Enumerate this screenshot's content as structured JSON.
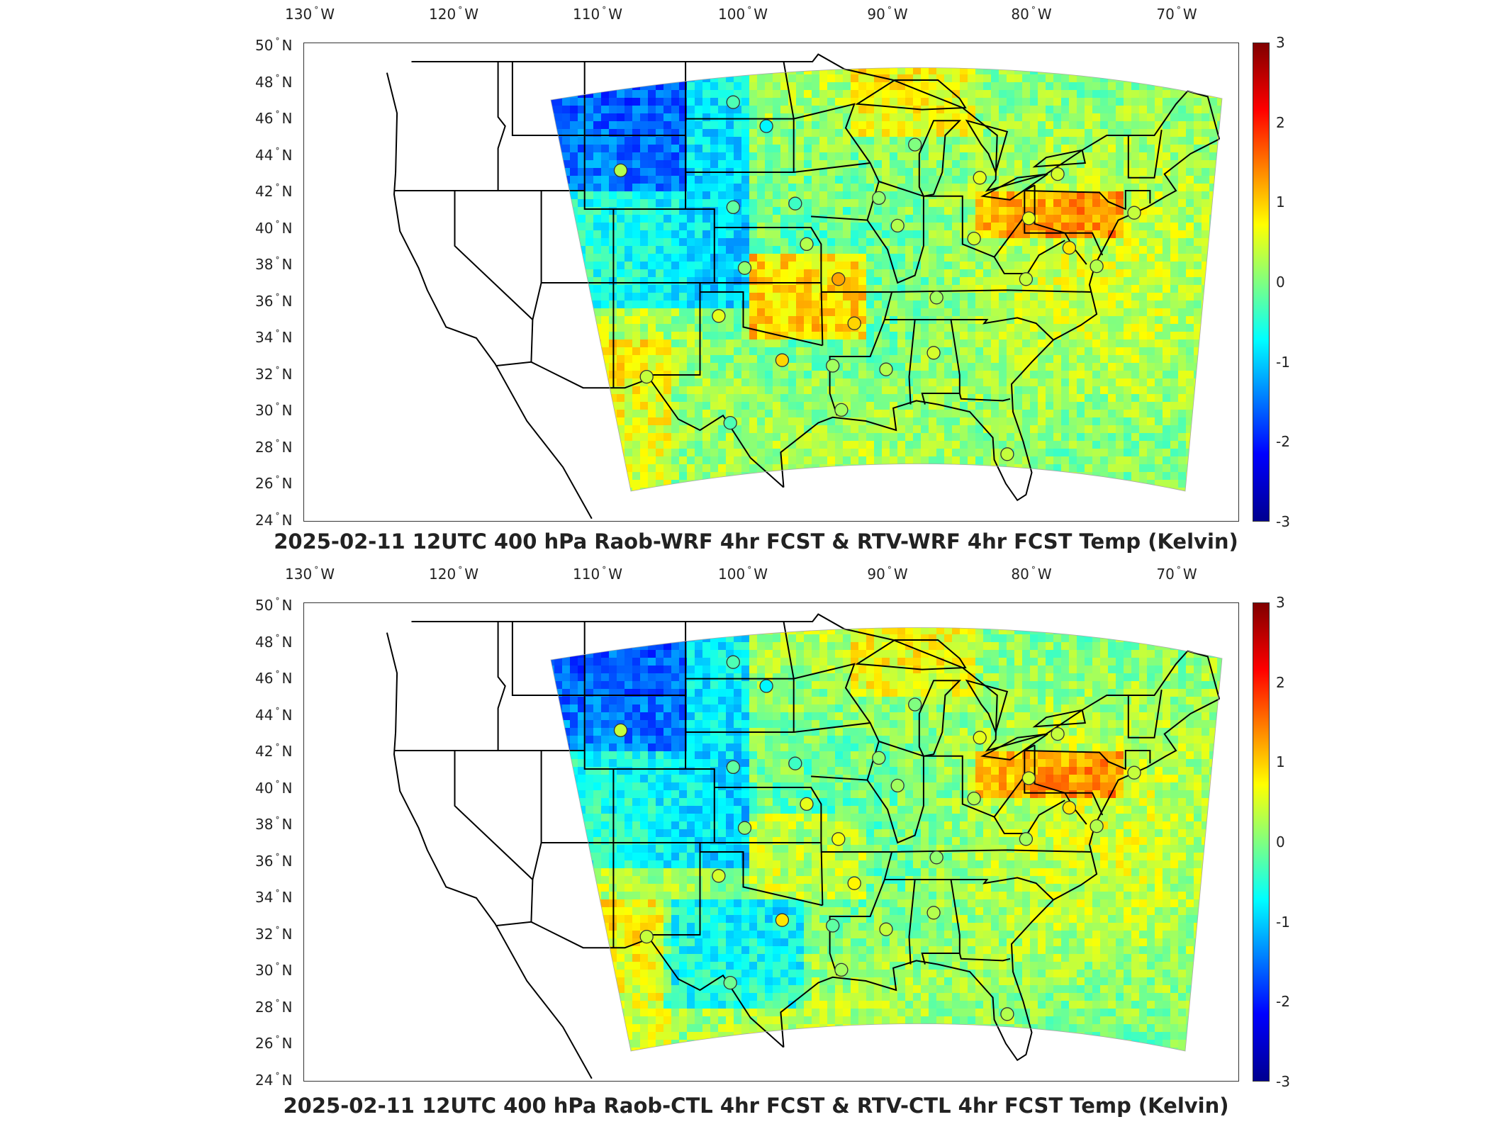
{
  "lon_labels": [
    "130",
    "120",
    "110",
    "100",
    "90",
    "80",
    "70"
  ],
  "lon_hemisphere": "W",
  "lat_labels": [
    "50",
    "48",
    "46",
    "44",
    "42",
    "40",
    "38",
    "36",
    "34",
    "32",
    "30",
    "28",
    "26",
    "24"
  ],
  "lat_hemisphere": "N",
  "degree_symbol": "°",
  "colorbar": {
    "ticks": [
      "3",
      "2",
      "1",
      "0",
      "-1",
      "-2",
      "-3"
    ],
    "range": [
      -3,
      3
    ],
    "colormap": "jet",
    "colors": [
      "#800000",
      "#ff0000",
      "#ff8000",
      "#ffff00",
      "#80ff80",
      "#00ffff",
      "#0080ff",
      "#0000ff",
      "#00008f"
    ]
  },
  "panels": [
    {
      "title": "2025-02-11 12UTC 400 hPa Raob-WRF 4hr FCST & RTV-WRF 4hr FCST Temp (Kelvin)"
    },
    {
      "title": "2025-02-11 12UTC 400 hPa Raob-CTL 4hr FCST & RTV-CTL 4hr FCST Temp (Kelvin)"
    }
  ],
  "stations": [
    {
      "lon": -108.5,
      "lat": 43.1,
      "top_value": 0.3,
      "bottom_value": 0.4
    },
    {
      "lon": -100.7,
      "lat": 46.8,
      "top_value": -0.3,
      "bottom_value": -0.3
    },
    {
      "lon": -98.4,
      "lat": 45.5,
      "top_value": -0.8,
      "bottom_value": -0.8
    },
    {
      "lon": -100.7,
      "lat": 41.1,
      "top_value": -0.2,
      "bottom_value": -0.2
    },
    {
      "lon": -96.4,
      "lat": 41.3,
      "top_value": -0.4,
      "bottom_value": -0.4
    },
    {
      "lon": -95.6,
      "lat": 39.1,
      "top_value": 0.3,
      "bottom_value": 0.6
    },
    {
      "lon": -99.9,
      "lat": 37.8,
      "top_value": 0.1,
      "bottom_value": 0.1
    },
    {
      "lon": -93.4,
      "lat": 37.2,
      "top_value": 1.3,
      "bottom_value": 0.7
    },
    {
      "lon": -101.7,
      "lat": 35.2,
      "top_value": 0.6,
      "bottom_value": 0.5
    },
    {
      "lon": -92.3,
      "lat": 34.8,
      "top_value": 1.0,
      "bottom_value": 0.8
    },
    {
      "lon": -97.3,
      "lat": 32.8,
      "top_value": 1.0,
      "bottom_value": 0.9
    },
    {
      "lon": -93.8,
      "lat": 32.5,
      "top_value": 0.2,
      "bottom_value": -0.2
    },
    {
      "lon": -106.7,
      "lat": 31.9,
      "top_value": 0.4,
      "bottom_value": 0.4
    },
    {
      "lon": -100.9,
      "lat": 29.4,
      "top_value": -0.3,
      "bottom_value": -0.1
    },
    {
      "lon": -93.2,
      "lat": 30.1,
      "top_value": 0.2,
      "bottom_value": 0.2
    },
    {
      "lon": -90.1,
      "lat": 32.3,
      "top_value": 0.3,
      "bottom_value": 0.4
    },
    {
      "lon": -86.8,
      "lat": 33.2,
      "top_value": 0.5,
      "bottom_value": 0.3
    },
    {
      "lon": -86.6,
      "lat": 36.2,
      "top_value": 0.2,
      "bottom_value": 0.1
    },
    {
      "lon": -88.1,
      "lat": 44.5,
      "top_value": 0.0,
      "bottom_value": 0.0
    },
    {
      "lon": -90.6,
      "lat": 41.6,
      "top_value": 0.1,
      "bottom_value": 0.1
    },
    {
      "lon": -89.3,
      "lat": 40.1,
      "top_value": 0.3,
      "bottom_value": 0.2
    },
    {
      "lon": -83.6,
      "lat": 42.7,
      "top_value": 0.6,
      "bottom_value": 0.6
    },
    {
      "lon": -84.0,
      "lat": 39.4,
      "top_value": 0.5,
      "bottom_value": 0.3
    },
    {
      "lon": -80.2,
      "lat": 40.5,
      "top_value": 0.6,
      "bottom_value": 0.5
    },
    {
      "lon": -80.4,
      "lat": 37.2,
      "top_value": 0.4,
      "bottom_value": 0.2
    },
    {
      "lon": -78.2,
      "lat": 42.9,
      "top_value": 0.5,
      "bottom_value": 0.4
    },
    {
      "lon": -77.4,
      "lat": 38.9,
      "top_value": 0.9,
      "bottom_value": 0.9
    },
    {
      "lon": -75.5,
      "lat": 37.9,
      "top_value": 0.3,
      "bottom_value": 0.3
    },
    {
      "lon": -72.9,
      "lat": 40.8,
      "top_value": 0.4,
      "bottom_value": 0.4
    },
    {
      "lon": -81.7,
      "lat": 27.7,
      "top_value": 0.4,
      "bottom_value": 0.3
    }
  ]
}
